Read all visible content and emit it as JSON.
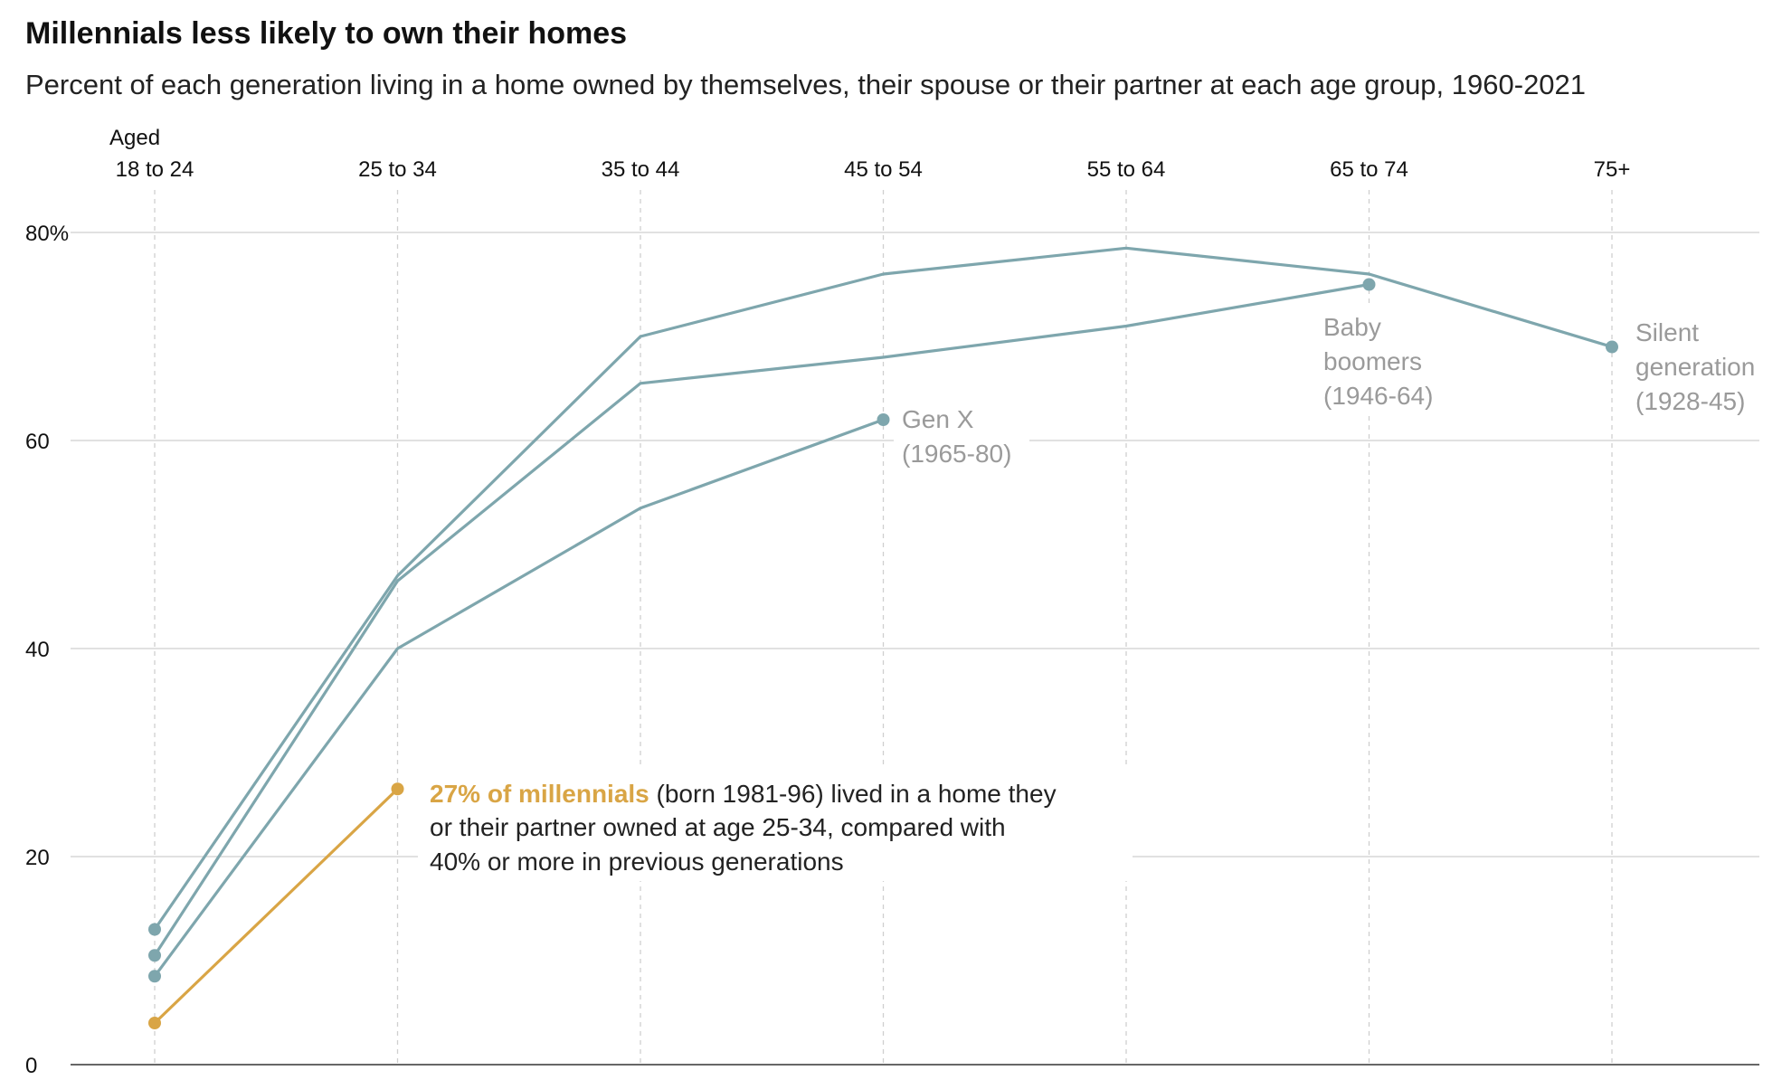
{
  "chart_data": {
    "type": "line",
    "title": "Millennials less likely to own their homes",
    "subtitle": "Percent of each generation living in a home owned by themselves, their spouse or their partner at each age group, 1960-2021",
    "x_prefix_label": "Aged",
    "categories": [
      "18 to 24",
      "25 to 34",
      "35 to 44",
      "45 to 54",
      "55 to 64",
      "65 to 74",
      "75+"
    ],
    "ylim": [
      0,
      80
    ],
    "yticks": [
      {
        "value": 80,
        "label": "80%"
      },
      {
        "value": 60,
        "label": "60"
      },
      {
        "value": 40,
        "label": "40"
      },
      {
        "value": 20,
        "label": "20"
      },
      {
        "value": 0,
        "label": "0"
      }
    ],
    "series": [
      {
        "name": "Silent generation",
        "label_lines": [
          "Silent",
          "generation",
          "(1928-45)"
        ],
        "values": [
          13,
          47,
          70,
          76,
          78.5,
          76,
          69
        ],
        "color": "#7ea6ad"
      },
      {
        "name": "Baby boomers",
        "label_lines": [
          "Baby",
          "boomers",
          "(1946-64)"
        ],
        "values": [
          10.5,
          46.5,
          65.5,
          68,
          71,
          75,
          null
        ],
        "color": "#7ea6ad"
      },
      {
        "name": "Gen X",
        "label_lines": [
          "Gen X",
          "(1965-80)"
        ],
        "values": [
          8.5,
          40,
          53.5,
          62,
          null,
          null,
          null
        ],
        "color": "#7ea6ad"
      },
      {
        "name": "Millennials",
        "label_lines": [],
        "values": [
          4,
          26.5,
          null,
          null,
          null,
          null,
          null
        ],
        "color": "#d9a545"
      }
    ],
    "annotation": {
      "highlight": "27% of millennials",
      "line1_rest": " (born 1981-96) lived in a home they",
      "line2": "or their partner owned at age 25-34, compared with",
      "line3": "40% or more in previous generations"
    },
    "grid": true
  }
}
